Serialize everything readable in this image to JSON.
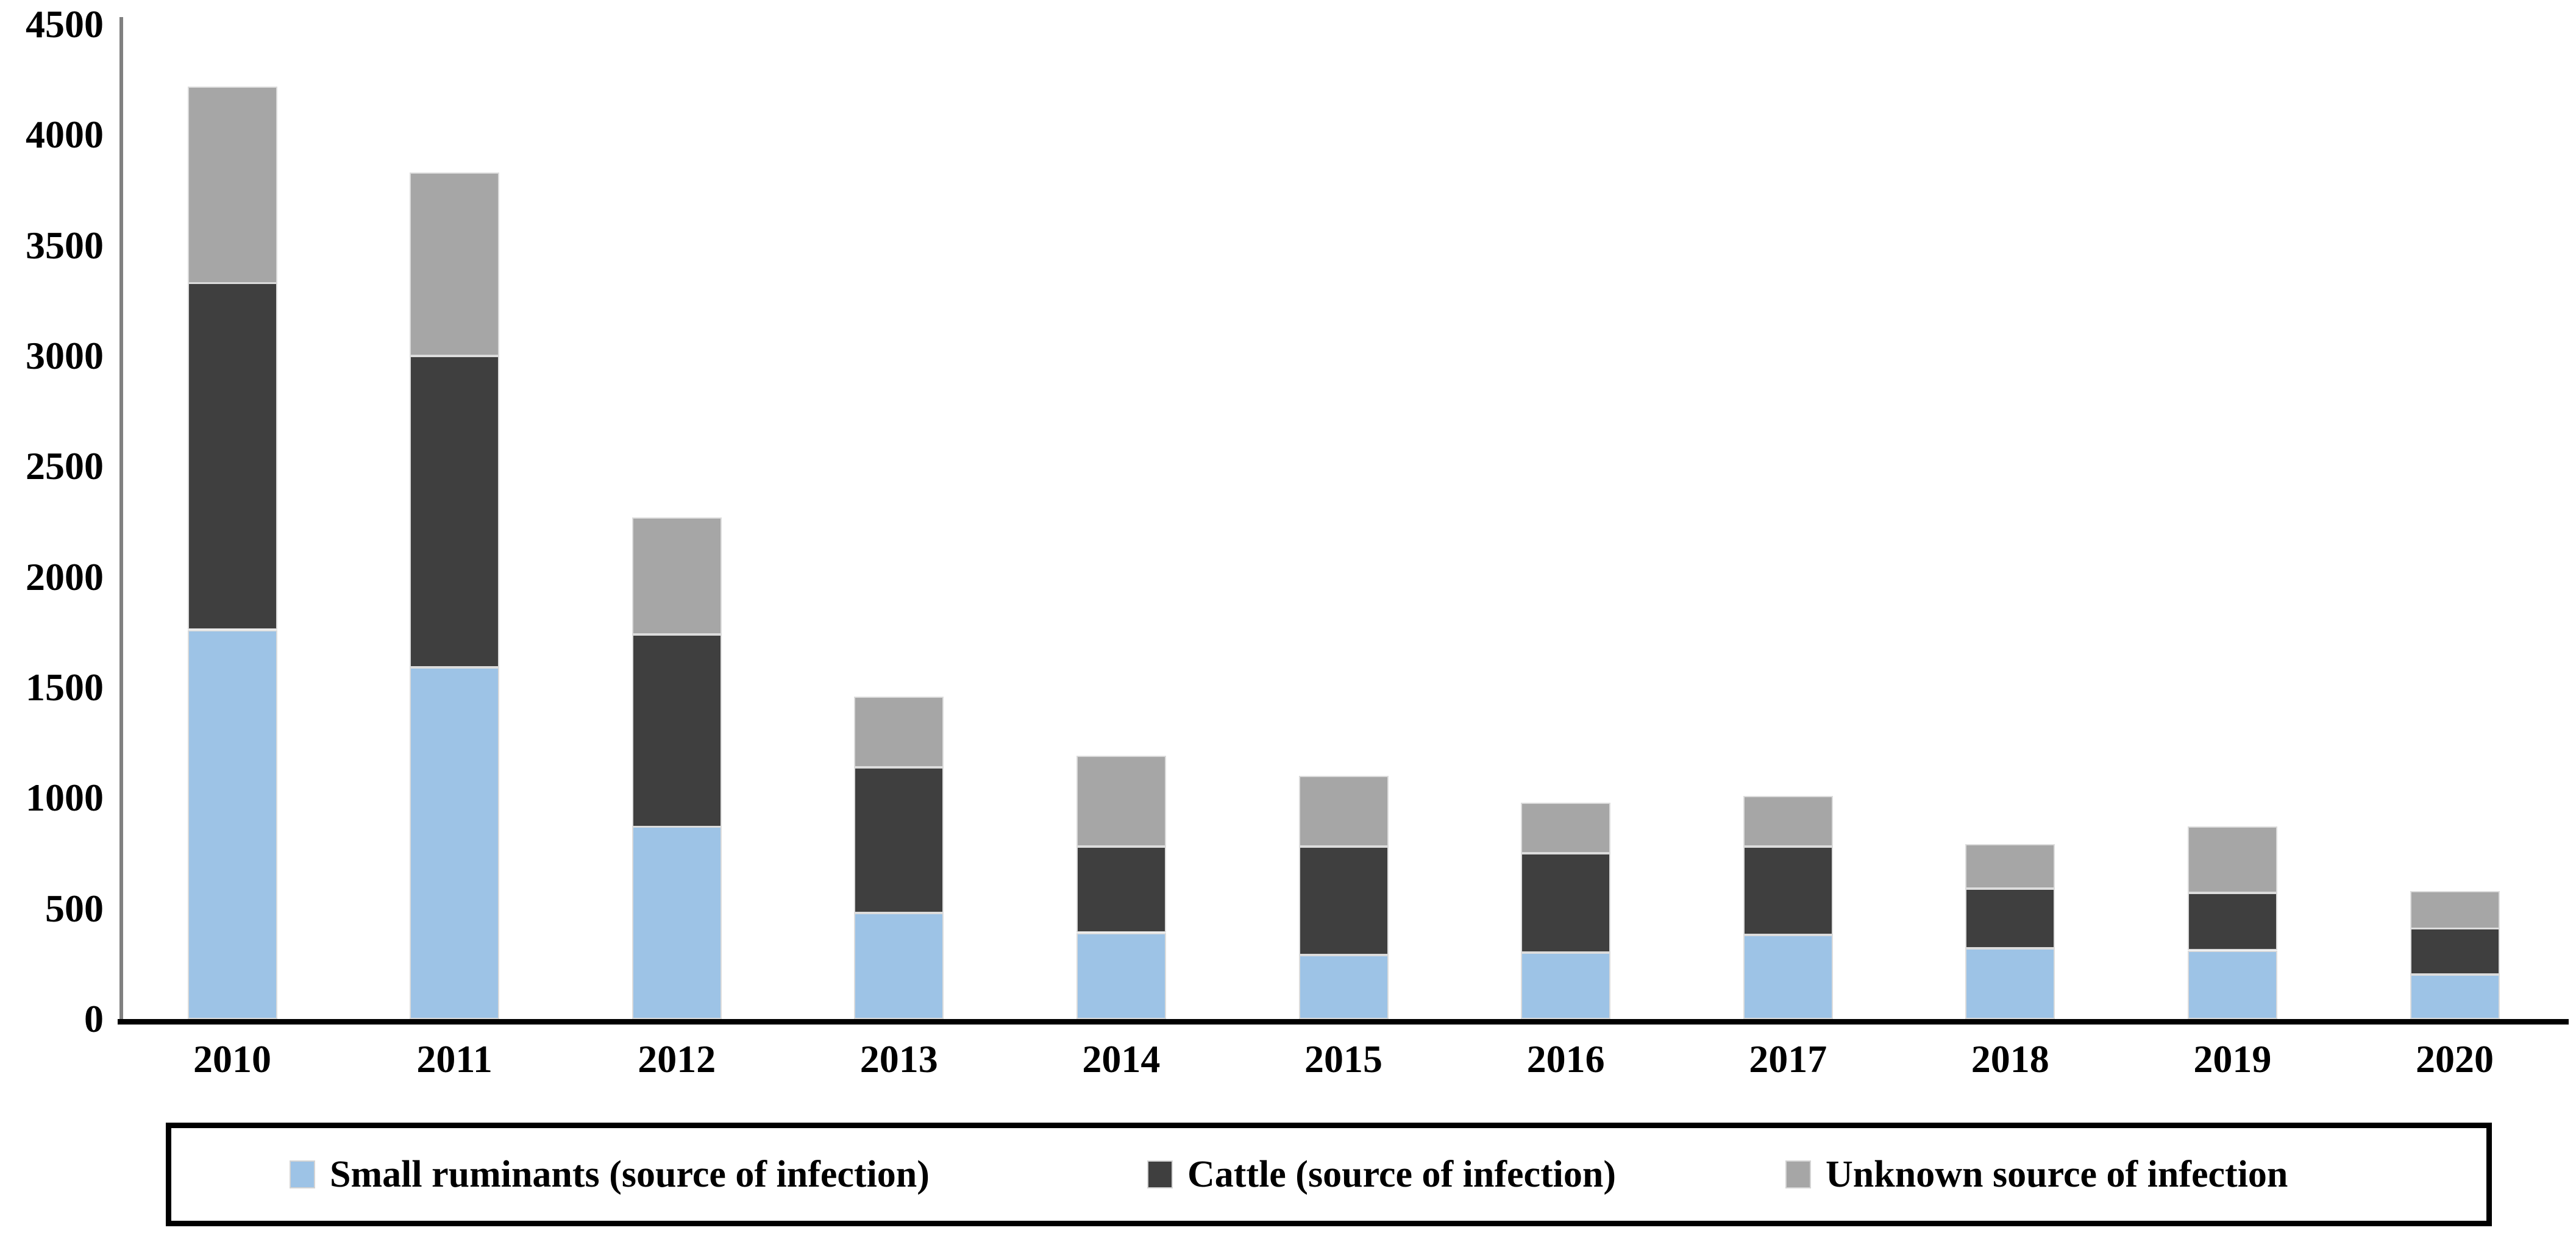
{
  "chart_data": {
    "type": "bar",
    "stacked": true,
    "title": "",
    "xlabel": "",
    "ylabel": "",
    "grid": false,
    "legend_position": "bottom",
    "ylim": [
      0,
      4500
    ],
    "ytick_interval": 500,
    "ytick_labels": [
      "0",
      "500",
      "1000",
      "1500",
      "2000",
      "2500",
      "3000",
      "3500",
      "4000",
      "4500"
    ],
    "categories": [
      "2010",
      "2011",
      "2012",
      "2013",
      "2014",
      "2015",
      "2016",
      "2017",
      "2018",
      "2019",
      "2020"
    ],
    "series": [
      {
        "name": "Small ruminants (source of infection)",
        "color": "#9DC3E6",
        "values": [
          1760,
          1590,
          870,
          480,
          390,
          290,
          300,
          380,
          320,
          310,
          200
        ]
      },
      {
        "name": "Cattle (source of infection)",
        "color": "#3F3F3F",
        "values": [
          1570,
          1410,
          870,
          660,
          390,
          490,
          450,
          400,
          270,
          260,
          210
        ]
      },
      {
        "name": "Unknown source of infection",
        "color": "#A6A6A6",
        "values": [
          890,
          830,
          530,
          320,
          410,
          320,
          230,
          230,
          200,
          300,
          170
        ]
      }
    ],
    "axis_colors": {
      "y_axis_line": "#808080",
      "x_axis_line": "#000000"
    }
  }
}
